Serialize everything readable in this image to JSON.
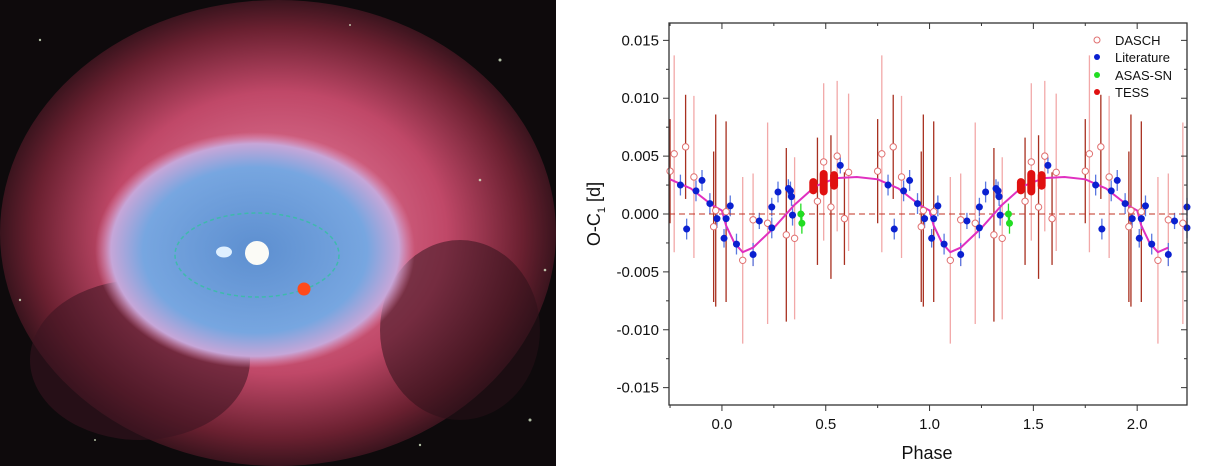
{
  "colors": {
    "dasch": "#e07070",
    "dasch_err_dark": "#a83020",
    "dasch_err_light": "#f2a8a8",
    "literature": "#0a20d0",
    "literature_err": "#5a78e0",
    "asassn": "#22dd22",
    "tess": "#e01010",
    "model": "#e030c0",
    "zero_line": "#c03020"
  },
  "chart_data": {
    "type": "scatter",
    "xlabel": "Phase",
    "ylabel": "O-C",
    "ylabel_sub": "1",
    "ylabel_unit": "[d]",
    "xlim": [
      -0.255,
      2.24
    ],
    "ylim": [
      -0.0165,
      0.0165
    ],
    "xticks": [
      0.0,
      0.5,
      1.0,
      1.5,
      2.0
    ],
    "xtick_labels": [
      "0.0",
      "0.5",
      "1.0",
      "1.5",
      "2.0"
    ],
    "yticks": [
      -0.015,
      -0.01,
      -0.005,
      0.0,
      0.005,
      0.01,
      0.015
    ],
    "ytick_labels": [
      "-0.015",
      "-0.010",
      "-0.005",
      "0.000",
      "0.005",
      "0.010",
      "0.015"
    ],
    "period": 1,
    "legend_position": "top-right",
    "reference_line": 0.0,
    "series": [
      {
        "name": "DASCH",
        "marker": "open-circle",
        "points": [
          [
            0.825,
            0.0058,
            0.0045
          ],
          [
            0.865,
            0.0032,
            0.007
          ],
          [
            0.96,
            -0.0011,
            0.0065
          ],
          [
            0.1,
            -0.004,
            0.0072
          ],
          [
            0.31,
            -0.0018,
            0.0075
          ],
          [
            0.35,
            -0.0021,
            0.007
          ],
          [
            0.46,
            0.0011,
            0.0055
          ],
          [
            0.49,
            0.0045,
            0.0068
          ],
          [
            0.525,
            0.0006,
            0.0062
          ],
          [
            0.555,
            0.005,
            0.0065
          ],
          [
            0.59,
            -0.0004,
            0.004
          ],
          [
            0.61,
            0.0036,
            0.0068
          ],
          [
            0.75,
            0.0037,
            0.0045
          ],
          [
            0.77,
            0.0052,
            0.0085
          ],
          [
            0.02,
            0.0002,
            0.0078
          ],
          [
            0.22,
            -0.0008,
            0.0087
          ],
          [
            0.97,
            0.0003,
            0.0083
          ],
          [
            0.15,
            -0.0005,
            0.004
          ]
        ]
      },
      {
        "name": "Literature",
        "marker": "filled-circle",
        "points": [
          [
            0.8,
            0.0025,
            0.0009
          ],
          [
            0.83,
            -0.0013,
            0.0009
          ],
          [
            0.875,
            0.002,
            0.0009
          ],
          [
            0.904,
            0.0029,
            0.0009
          ],
          [
            0.942,
            0.0009,
            0.0009
          ],
          [
            0.976,
            -0.0004,
            0.0008
          ],
          [
            0.01,
            -0.0021,
            0.0008
          ],
          [
            0.02,
            -0.0004,
            0.0009
          ],
          [
            0.04,
            0.0007,
            0.0009
          ],
          [
            0.07,
            -0.0026,
            0.0009
          ],
          [
            0.15,
            -0.0035,
            0.001
          ],
          [
            0.18,
            -0.0006,
            0.0007
          ],
          [
            0.24,
            -0.0012,
            0.0009
          ],
          [
            0.24,
            0.0006,
            0.0008
          ],
          [
            0.27,
            0.0019,
            0.0009
          ],
          [
            0.32,
            0.0022,
            0.0008
          ],
          [
            0.33,
            0.002,
            0.0008
          ],
          [
            0.335,
            0.0015,
            0.0008
          ],
          [
            0.34,
            -0.0001,
            0.0009
          ],
          [
            0.57,
            0.0042,
            0.0007
          ]
        ]
      },
      {
        "name": "ASAS-SN",
        "marker": "filled-circle",
        "points": [
          [
            0.38,
            0.0,
            0.0009
          ],
          [
            0.385,
            -0.0008,
            0.0009
          ]
        ]
      },
      {
        "name": "TESS",
        "marker": "filled-bar",
        "points": [
          [
            0.44,
            0.0024,
            0.0007
          ],
          [
            0.49,
            0.0027,
            0.0011
          ],
          [
            0.54,
            0.0029,
            0.0008
          ]
        ]
      }
    ],
    "model": {
      "name": "fit",
      "x": [
        0.0,
        0.02,
        0.06,
        0.1,
        0.15,
        0.25,
        0.35,
        0.45,
        0.55,
        0.65,
        0.75,
        0.85,
        0.95,
        1.0
      ],
      "y": [
        0.0003,
        -0.001,
        -0.0025,
        -0.0033,
        -0.0029,
        -0.0012,
        0.0008,
        0.0024,
        0.0031,
        0.0032,
        0.003,
        0.0022,
        0.0008,
        0.0003
      ]
    }
  }
}
